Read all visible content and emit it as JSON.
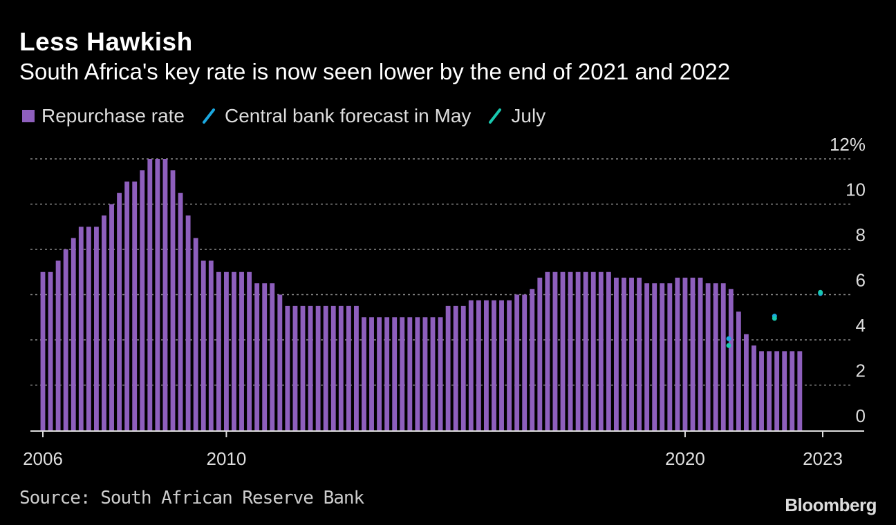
{
  "header": {
    "title": "Less Hawkish",
    "subtitle": "South Africa's key rate is now seen lower by the end of 2021 and 2022"
  },
  "legend": [
    {
      "label": "Repurchase rate",
      "color": "#8e5fbd",
      "shape": "square"
    },
    {
      "label": "Central bank forecast in May",
      "color": "#1ba8e0",
      "shape": "slash"
    },
    {
      "label": "July",
      "color": "#19c9b0",
      "shape": "slash"
    }
  ],
  "footer": {
    "source": "Source: South African Reserve Bank",
    "brand": "Bloomberg"
  },
  "chart_data": {
    "type": "bar",
    "title": "Less Hawkish",
    "subtitle": "South Africa's key rate is now seen lower by the end of 2021 and 2022",
    "xlabel": "",
    "ylabel": "",
    "ylim": [
      0,
      12
    ],
    "yticks": [
      0,
      2,
      4,
      6,
      8,
      10,
      12
    ],
    "ytick_labels": [
      "0",
      "2",
      "4",
      "6",
      "8",
      "10",
      "12%"
    ],
    "xlim": [
      2006,
      2023.2
    ],
    "xticks": [
      2006,
      2010,
      2020,
      2023
    ],
    "xtick_labels": [
      "2006",
      "2010",
      "2020",
      "2023"
    ],
    "grid": true,
    "series": [
      {
        "name": "Repurchase rate",
        "color": "#8e5fbd",
        "x_start": 2006,
        "period": "bimonthly",
        "values": [
          7.0,
          7.0,
          7.5,
          8.0,
          8.5,
          9.0,
          9.0,
          9.0,
          9.5,
          10.0,
          10.5,
          11.0,
          11.0,
          11.5,
          12.0,
          12.0,
          12.0,
          11.5,
          10.5,
          9.5,
          8.5,
          7.5,
          7.5,
          7.0,
          7.0,
          7.0,
          7.0,
          7.0,
          6.5,
          6.5,
          6.5,
          6.0,
          5.5,
          5.5,
          5.5,
          5.5,
          5.5,
          5.5,
          5.5,
          5.5,
          5.5,
          5.5,
          5.0,
          5.0,
          5.0,
          5.0,
          5.0,
          5.0,
          5.0,
          5.0,
          5.0,
          5.0,
          5.0,
          5.5,
          5.5,
          5.5,
          5.75,
          5.75,
          5.75,
          5.75,
          5.75,
          5.75,
          6.0,
          6.0,
          6.25,
          6.75,
          7.0,
          7.0,
          7.0,
          7.0,
          7.0,
          7.0,
          7.0,
          7.0,
          7.0,
          6.75,
          6.75,
          6.75,
          6.75,
          6.5,
          6.5,
          6.5,
          6.5,
          6.75,
          6.75,
          6.75,
          6.75,
          6.5,
          6.5,
          6.5,
          6.25,
          5.25,
          4.25,
          3.75,
          3.5,
          3.5,
          3.5,
          3.5,
          3.5,
          3.5
        ]
      },
      {
        "name": "Central bank forecast in May",
        "color": "#1ba8e0",
        "points": [
          {
            "x": 2021.95,
            "y": 4.05
          },
          {
            "x": 2022.95,
            "y": 5.05
          },
          {
            "x": 2023.95,
            "y": 6.05
          }
        ]
      },
      {
        "name": "July",
        "color": "#19c9b0",
        "points": [
          {
            "x": 2021.95,
            "y": 3.75
          },
          {
            "x": 2022.95,
            "y": 4.95
          },
          {
            "x": 2023.95,
            "y": 6.1
          }
        ]
      }
    ]
  }
}
